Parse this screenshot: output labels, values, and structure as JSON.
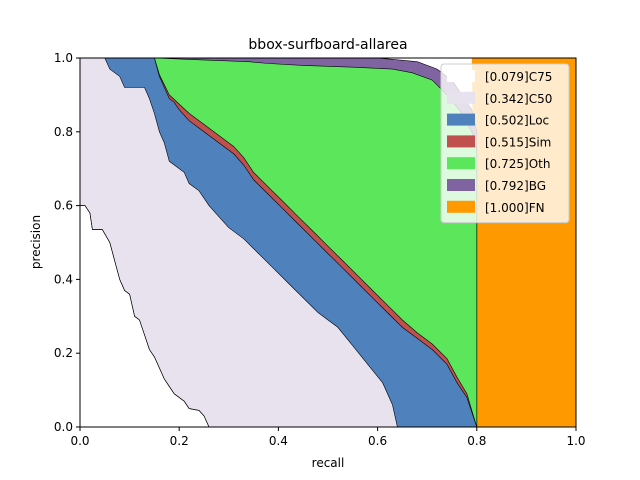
{
  "chart_data": {
    "type": "area",
    "title": "bbox-surfboard-allarea",
    "xlabel": "recall",
    "ylabel": "precision",
    "xlim": [
      0,
      1
    ],
    "ylim": [
      0,
      1
    ],
    "xticks": [
      "0.0",
      "0.2",
      "0.4",
      "0.6",
      "0.8",
      "1.0"
    ],
    "yticks": [
      "0.0",
      "0.2",
      "0.4",
      "0.6",
      "0.8",
      "1.0"
    ],
    "grid": false,
    "legend_position": "top-right",
    "series": [
      {
        "name": "[0.079]C75",
        "color": "#ffffff",
        "curve": [
          [
            0.0,
            0.6
          ],
          [
            0.01,
            0.6
          ],
          [
            0.02,
            0.58
          ],
          [
            0.025,
            0.535
          ],
          [
            0.045,
            0.535
          ],
          [
            0.06,
            0.5
          ],
          [
            0.07,
            0.45
          ],
          [
            0.08,
            0.4
          ],
          [
            0.09,
            0.37
          ],
          [
            0.1,
            0.36
          ],
          [
            0.11,
            0.3
          ],
          [
            0.12,
            0.29
          ],
          [
            0.13,
            0.25
          ],
          [
            0.14,
            0.21
          ],
          [
            0.15,
            0.19
          ],
          [
            0.16,
            0.16
          ],
          [
            0.17,
            0.13
          ],
          [
            0.18,
            0.11
          ],
          [
            0.19,
            0.09
          ],
          [
            0.2,
            0.08
          ],
          [
            0.21,
            0.07
          ],
          [
            0.22,
            0.05
          ],
          [
            0.24,
            0.045
          ],
          [
            0.25,
            0.03
          ],
          [
            0.26,
            0.0
          ]
        ]
      },
      {
        "name": "[0.342]C50",
        "color": "#e8e2ef",
        "curve": [
          [
            0.0,
            1.0
          ],
          [
            0.05,
            1.0
          ],
          [
            0.06,
            0.97
          ],
          [
            0.08,
            0.95
          ],
          [
            0.09,
            0.92
          ],
          [
            0.13,
            0.92
          ],
          [
            0.14,
            0.89
          ],
          [
            0.15,
            0.85
          ],
          [
            0.16,
            0.8
          ],
          [
            0.17,
            0.77
          ],
          [
            0.18,
            0.72
          ],
          [
            0.21,
            0.69
          ],
          [
            0.22,
            0.66
          ],
          [
            0.24,
            0.64
          ],
          [
            0.26,
            0.6
          ],
          [
            0.28,
            0.57
          ],
          [
            0.3,
            0.54
          ],
          [
            0.33,
            0.51
          ],
          [
            0.36,
            0.47
          ],
          [
            0.39,
            0.43
          ],
          [
            0.42,
            0.39
          ],
          [
            0.45,
            0.35
          ],
          [
            0.48,
            0.31
          ],
          [
            0.52,
            0.27
          ],
          [
            0.55,
            0.22
          ],
          [
            0.58,
            0.17
          ],
          [
            0.61,
            0.12
          ],
          [
            0.63,
            0.06
          ],
          [
            0.64,
            0.0
          ]
        ]
      },
      {
        "name": "[0.502]Loc",
        "color": "#4f81bd",
        "curve": [
          [
            0.15,
            1.0
          ],
          [
            0.16,
            0.95
          ],
          [
            0.18,
            0.89
          ],
          [
            0.19,
            0.88
          ],
          [
            0.2,
            0.86
          ],
          [
            0.22,
            0.83
          ],
          [
            0.25,
            0.8
          ],
          [
            0.28,
            0.77
          ],
          [
            0.31,
            0.74
          ],
          [
            0.33,
            0.71
          ],
          [
            0.35,
            0.67
          ],
          [
            0.38,
            0.63
          ],
          [
            0.41,
            0.59
          ],
          [
            0.44,
            0.55
          ],
          [
            0.47,
            0.51
          ],
          [
            0.5,
            0.47
          ],
          [
            0.53,
            0.43
          ],
          [
            0.56,
            0.39
          ],
          [
            0.59,
            0.35
          ],
          [
            0.62,
            0.31
          ],
          [
            0.65,
            0.27
          ],
          [
            0.68,
            0.24
          ],
          [
            0.71,
            0.21
          ],
          [
            0.74,
            0.17
          ],
          [
            0.76,
            0.12
          ],
          [
            0.78,
            0.08
          ],
          [
            0.79,
            0.04
          ],
          [
            0.8,
            0.0
          ]
        ]
      },
      {
        "name": "[0.515]Sim",
        "color": "#c0504d",
        "curve": [
          [
            0.15,
            1.0
          ],
          [
            0.16,
            0.955
          ],
          [
            0.18,
            0.9
          ],
          [
            0.2,
            0.875
          ],
          [
            0.22,
            0.85
          ],
          [
            0.25,
            0.82
          ],
          [
            0.28,
            0.79
          ],
          [
            0.31,
            0.76
          ],
          [
            0.33,
            0.73
          ],
          [
            0.35,
            0.69
          ],
          [
            0.38,
            0.65
          ],
          [
            0.41,
            0.61
          ],
          [
            0.44,
            0.57
          ],
          [
            0.47,
            0.53
          ],
          [
            0.5,
            0.49
          ],
          [
            0.53,
            0.45
          ],
          [
            0.56,
            0.41
          ],
          [
            0.59,
            0.37
          ],
          [
            0.62,
            0.33
          ],
          [
            0.65,
            0.29
          ],
          [
            0.68,
            0.255
          ],
          [
            0.71,
            0.225
          ],
          [
            0.74,
            0.185
          ],
          [
            0.76,
            0.135
          ],
          [
            0.78,
            0.09
          ],
          [
            0.79,
            0.045
          ],
          [
            0.8,
            0.0
          ]
        ]
      },
      {
        "name": "[0.725]Oth",
        "color": "#5ce65c",
        "curve": [
          [
            0.15,
            1.0
          ],
          [
            0.24,
            0.995
          ],
          [
            0.34,
            0.99
          ],
          [
            0.38,
            0.985
          ],
          [
            0.45,
            0.98
          ],
          [
            0.55,
            0.975
          ],
          [
            0.63,
            0.97
          ],
          [
            0.67,
            0.96
          ],
          [
            0.71,
            0.94
          ],
          [
            0.74,
            0.9
          ],
          [
            0.77,
            0.85
          ],
          [
            0.79,
            0.8
          ],
          [
            0.8,
            0.75
          ],
          [
            0.8,
            0.0
          ]
        ]
      },
      {
        "name": "[0.792]BG",
        "color": "#8064a2",
        "curve": [
          [
            0.15,
            1.0
          ],
          [
            0.6,
            1.0
          ],
          [
            0.68,
            0.99
          ],
          [
            0.72,
            0.97
          ],
          [
            0.75,
            0.94
          ],
          [
            0.77,
            0.9
          ],
          [
            0.79,
            0.86
          ],
          [
            0.8,
            0.8
          ],
          [
            0.8,
            0.0
          ]
        ]
      },
      {
        "name": "[1.000]FN",
        "color": "#ff9900",
        "curve": [
          [
            0.79,
            1.0
          ],
          [
            1.0,
            1.0
          ],
          [
            1.0,
            0.0
          ],
          [
            0.8,
            0.0
          ]
        ]
      }
    ]
  }
}
